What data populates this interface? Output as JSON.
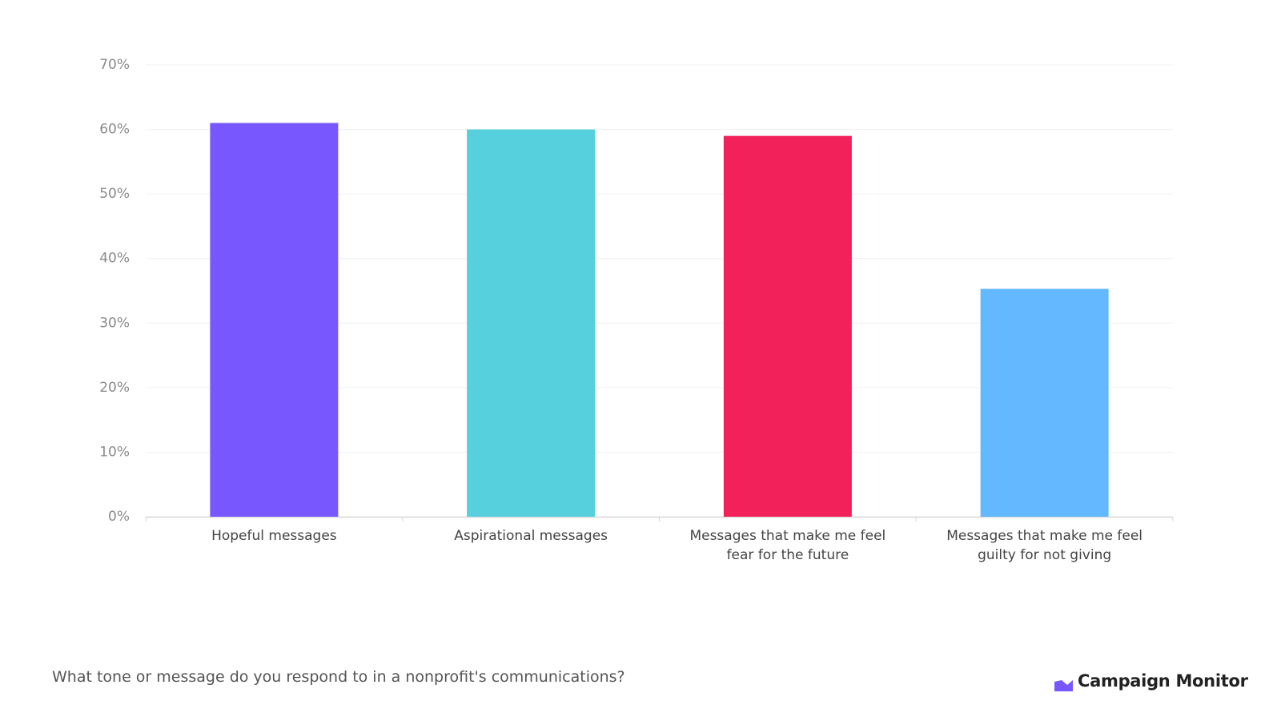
{
  "chart_data": {
    "type": "bar",
    "categories": [
      "Hopeful messages",
      "Aspirational messages",
      "Messages that make me feel fear for the future",
      "Messages that make me feel guilty for not giving"
    ],
    "values": [
      61,
      60,
      59,
      35.3
    ],
    "colors": [
      "#7857ff",
      "#55d0dc",
      "#f2215a",
      "#63b8ff"
    ],
    "ylim": [
      0,
      70
    ],
    "yticks": [
      {
        "value": 0,
        "label": "0%"
      },
      {
        "value": 10,
        "label": "10%"
      },
      {
        "value": 20,
        "label": "20%"
      },
      {
        "value": 30,
        "label": "30%"
      },
      {
        "value": 40,
        "label": "40%"
      },
      {
        "value": 50,
        "label": "50%"
      },
      {
        "value": 60,
        "label": "60%"
      },
      {
        "value": 70,
        "label": "70%"
      }
    ],
    "grid": true,
    "caption": "What tone or message do you respond to in a nonprofit's communications?",
    "brand": "Campaign Monitor"
  }
}
